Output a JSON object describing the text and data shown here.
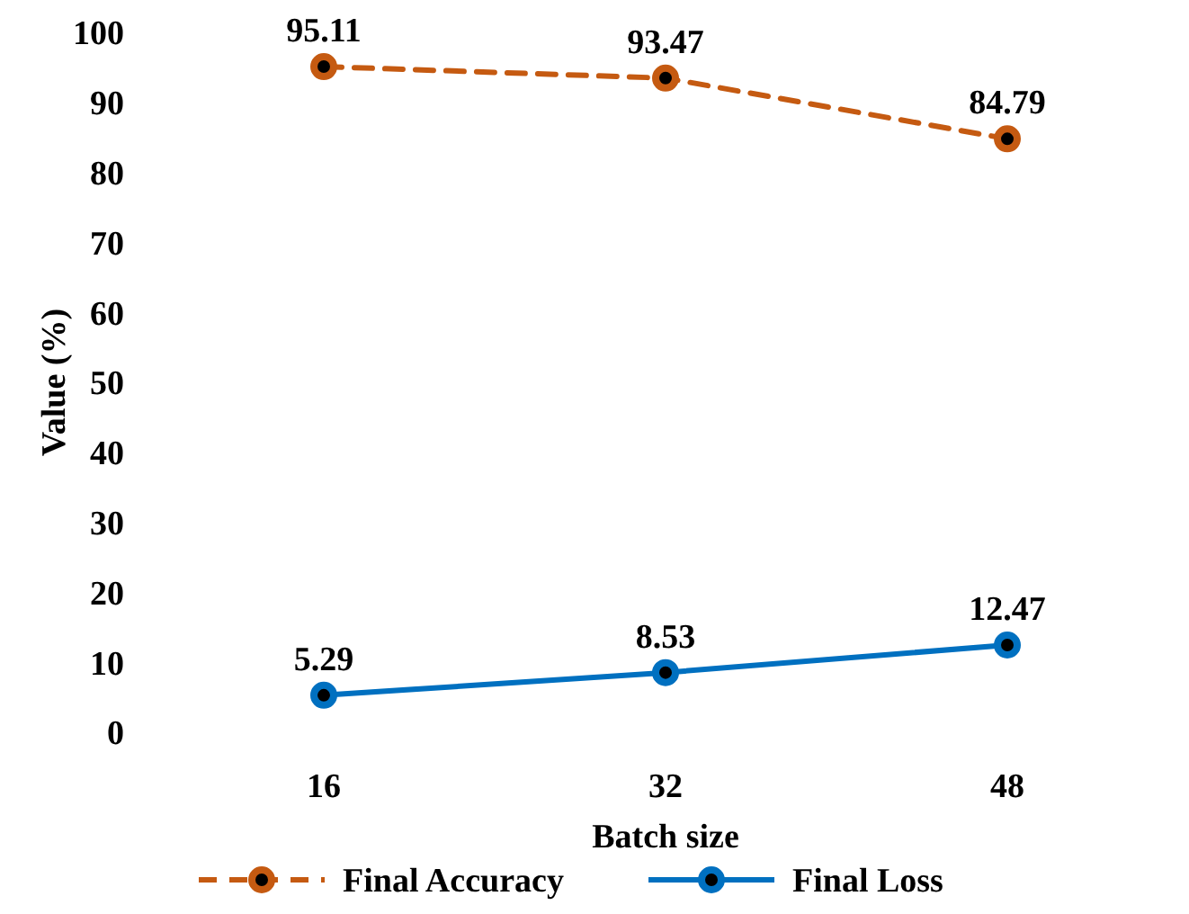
{
  "chart_data": {
    "type": "line",
    "xlabel": "Batch size",
    "ylabel": "Value (%)",
    "categories": [
      "16",
      "32",
      "48"
    ],
    "ylim": [
      0,
      100
    ],
    "yticks": [
      0,
      10,
      20,
      30,
      40,
      50,
      60,
      70,
      80,
      90,
      100
    ],
    "grid": false,
    "legend": "bottom",
    "marker": "circle",
    "data_labels": true,
    "series": [
      {
        "name": "Final Accuracy",
        "color": "#c55a11",
        "values": [
          95.11,
          93.47,
          84.79
        ],
        "line_style": "dashed"
      },
      {
        "name": "Final Loss",
        "color": "#0070c0",
        "values": [
          5.29,
          8.53,
          12.47
        ],
        "line_style": "solid"
      }
    ]
  }
}
